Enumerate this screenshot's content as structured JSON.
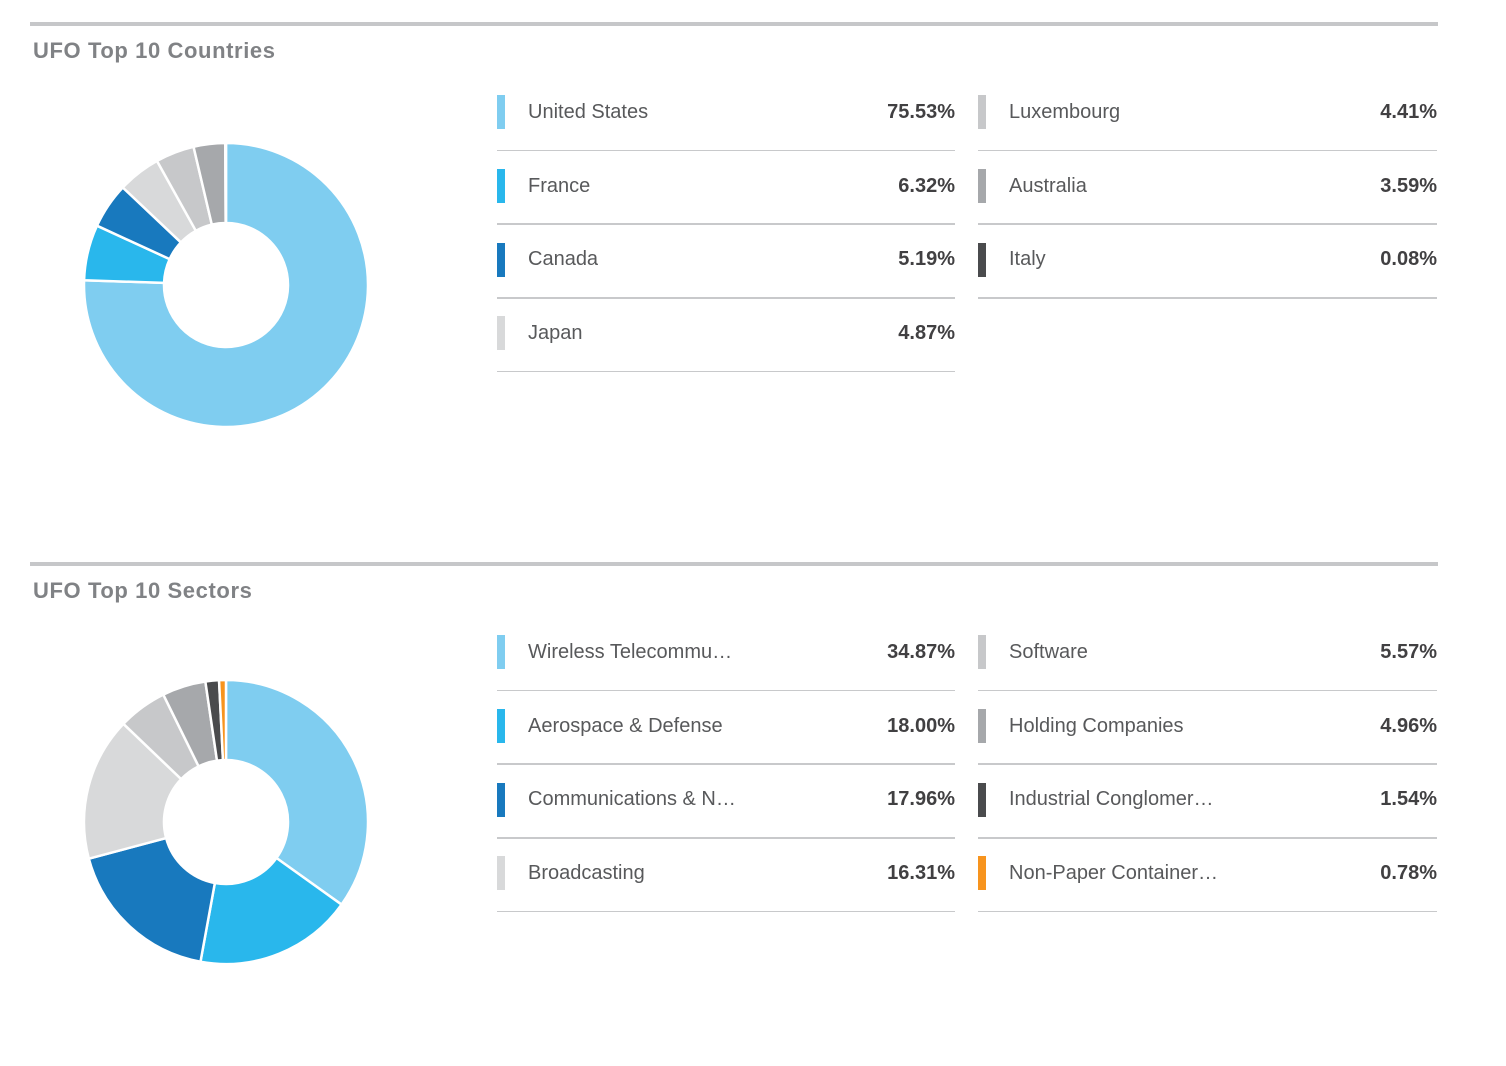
{
  "chart_data": [
    {
      "type": "pie",
      "subtype": "donut",
      "title": "UFO Top 10 Countries",
      "values_format": "percent",
      "start_angle": 0,
      "direction": "clockwise",
      "legend_position": "right",
      "legend_columns": 2,
      "segments": [
        {
          "label": "United States",
          "value": 75.53,
          "display": "75.53%",
          "color": "#7fcdf0"
        },
        {
          "label": "France",
          "value": 6.32,
          "display": "6.32%",
          "color": "#29b7ec"
        },
        {
          "label": "Canada",
          "value": 5.19,
          "display": "5.19%",
          "color": "#1879be"
        },
        {
          "label": "Japan",
          "value": 4.87,
          "display": "4.87%",
          "color": "#d8d9da"
        },
        {
          "label": "Luxembourg",
          "value": 4.41,
          "display": "4.41%",
          "color": "#c7c8ca"
        },
        {
          "label": "Australia",
          "value": 3.59,
          "display": "3.59%",
          "color": "#a6a8ab"
        },
        {
          "label": "Italy",
          "value": 0.08,
          "display": "0.08%",
          "color": "#4a4b4d"
        }
      ]
    },
    {
      "type": "pie",
      "subtype": "donut",
      "title": "UFO Top 10 Sectors",
      "values_format": "percent",
      "start_angle": 0,
      "direction": "clockwise",
      "legend_position": "right",
      "legend_columns": 2,
      "segments": [
        {
          "label": "Wireless Telecommu…",
          "value": 34.87,
          "display": "34.87%",
          "color": "#7fcdf0"
        },
        {
          "label": "Aerospace & Defense",
          "value": 18.0,
          "display": "18.00%",
          "color": "#29b7ec"
        },
        {
          "label": "Communications & N…",
          "value": 17.96,
          "display": "17.96%",
          "color": "#1879be"
        },
        {
          "label": "Broadcasting",
          "value": 16.31,
          "display": "16.31%",
          "color": "#d8d9da"
        },
        {
          "label": "Software",
          "value": 5.57,
          "display": "5.57%",
          "color": "#c7c8ca"
        },
        {
          "label": "Holding Companies",
          "value": 4.96,
          "display": "4.96%",
          "color": "#a6a8ab"
        },
        {
          "label": "Industrial Conglomer…",
          "value": 1.54,
          "display": "1.54%",
          "color": "#4a4b4d"
        },
        {
          "label": "Non-Paper Container…",
          "value": 0.78,
          "display": "0.78%",
          "color": "#f7941e"
        }
      ]
    }
  ],
  "style": {
    "background": "#ffffff",
    "rule_color": "#c6c7c9",
    "title_color": "#808285",
    "label_color": "#58595b",
    "value_color": "#414042",
    "separator_color": "#c8c9cb"
  }
}
